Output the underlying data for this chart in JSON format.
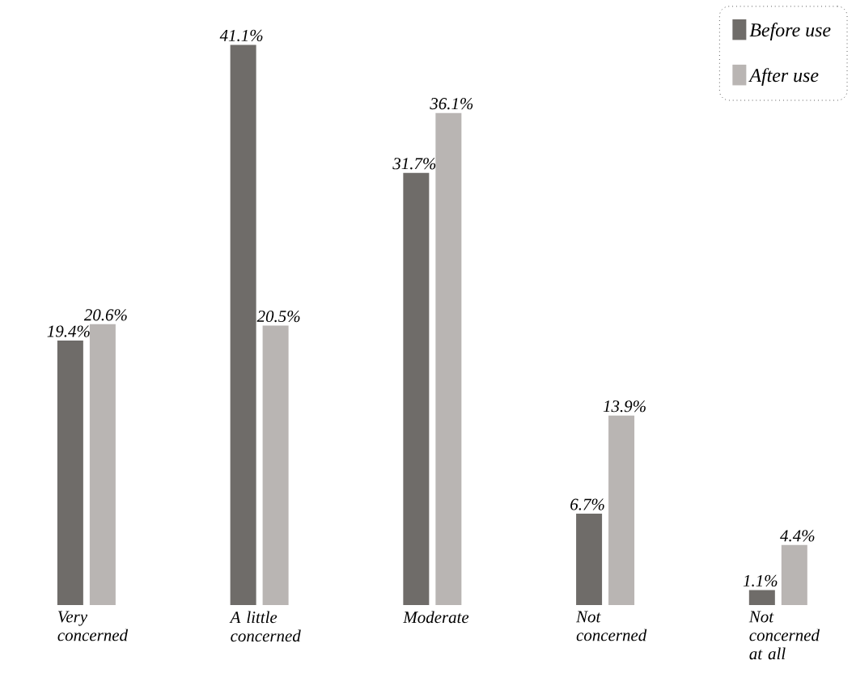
{
  "chart_data": {
    "type": "bar",
    "categories": [
      "Very concerned",
      "A little concerned",
      "Moderate",
      "Not concerned",
      "Not concerned at all"
    ],
    "series": [
      {
        "name": "Before use",
        "color": "#6f6c69",
        "values": [
          19.4,
          41.1,
          31.7,
          6.7,
          1.1
        ],
        "value_labels": [
          "19.4%",
          "41.1%",
          "31.7%",
          "6.7%",
          "1.1%"
        ]
      },
      {
        "name": "After use",
        "color": "#b9b5b3",
        "values": [
          20.6,
          20.5,
          36.1,
          13.9,
          4.4
        ],
        "value_labels": [
          "20.6%",
          "20.5%",
          "36.1%",
          "13.9%",
          "4.4%"
        ]
      }
    ],
    "legend": "top right"
  }
}
